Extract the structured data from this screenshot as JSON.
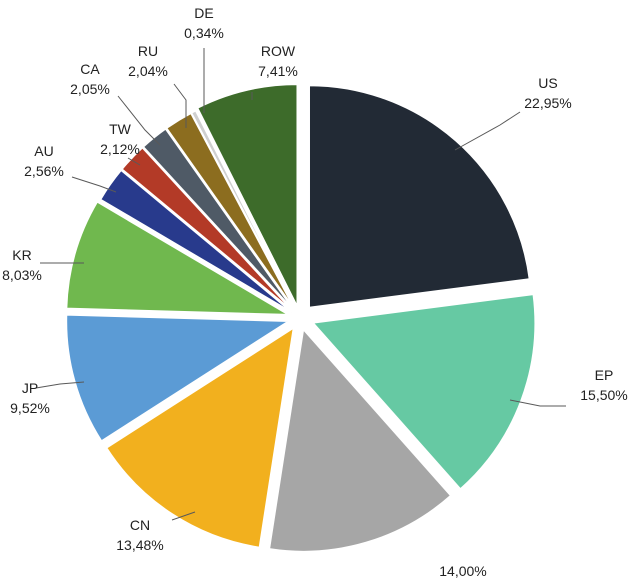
{
  "chart_data": {
    "type": "pie",
    "title": "",
    "slices": [
      {
        "label": "US",
        "value_text": "22,95%",
        "value": 22.95,
        "color": "#222a35"
      },
      {
        "label": "EP",
        "value_text": "15,50%",
        "value": 15.5,
        "color": "#66c9a3"
      },
      {
        "label": "",
        "value_text": "14,00%",
        "value": 14.0,
        "color": "#a6a6a6"
      },
      {
        "label": "CN",
        "value_text": "13,48%",
        "value": 13.48,
        "color": "#f2b01e"
      },
      {
        "label": "JP",
        "value_text": "9,52%",
        "value": 9.52,
        "color": "#5b9bd5"
      },
      {
        "label": "KR",
        "value_text": "8,03%",
        "value": 8.03,
        "color": "#70b84e"
      },
      {
        "label": "AU",
        "value_text": "2,56%",
        "value": 2.56,
        "color": "#283a8c"
      },
      {
        "label": "TW",
        "value_text": "2,12%",
        "value": 2.12,
        "color": "#b33a27"
      },
      {
        "label": "CA",
        "value_text": "2,05%",
        "value": 2.05,
        "color": "#4f5a66"
      },
      {
        "label": "RU",
        "value_text": "2,04%",
        "value": 2.04,
        "color": "#8c6d1f"
      },
      {
        "label": "DE",
        "value_text": "0,34%",
        "value": 0.34,
        "color": "#cfcfcf"
      },
      {
        "label": "ROW",
        "value_text": "7,41%",
        "value": 7.41,
        "color": "#3d6b2a"
      }
    ]
  }
}
